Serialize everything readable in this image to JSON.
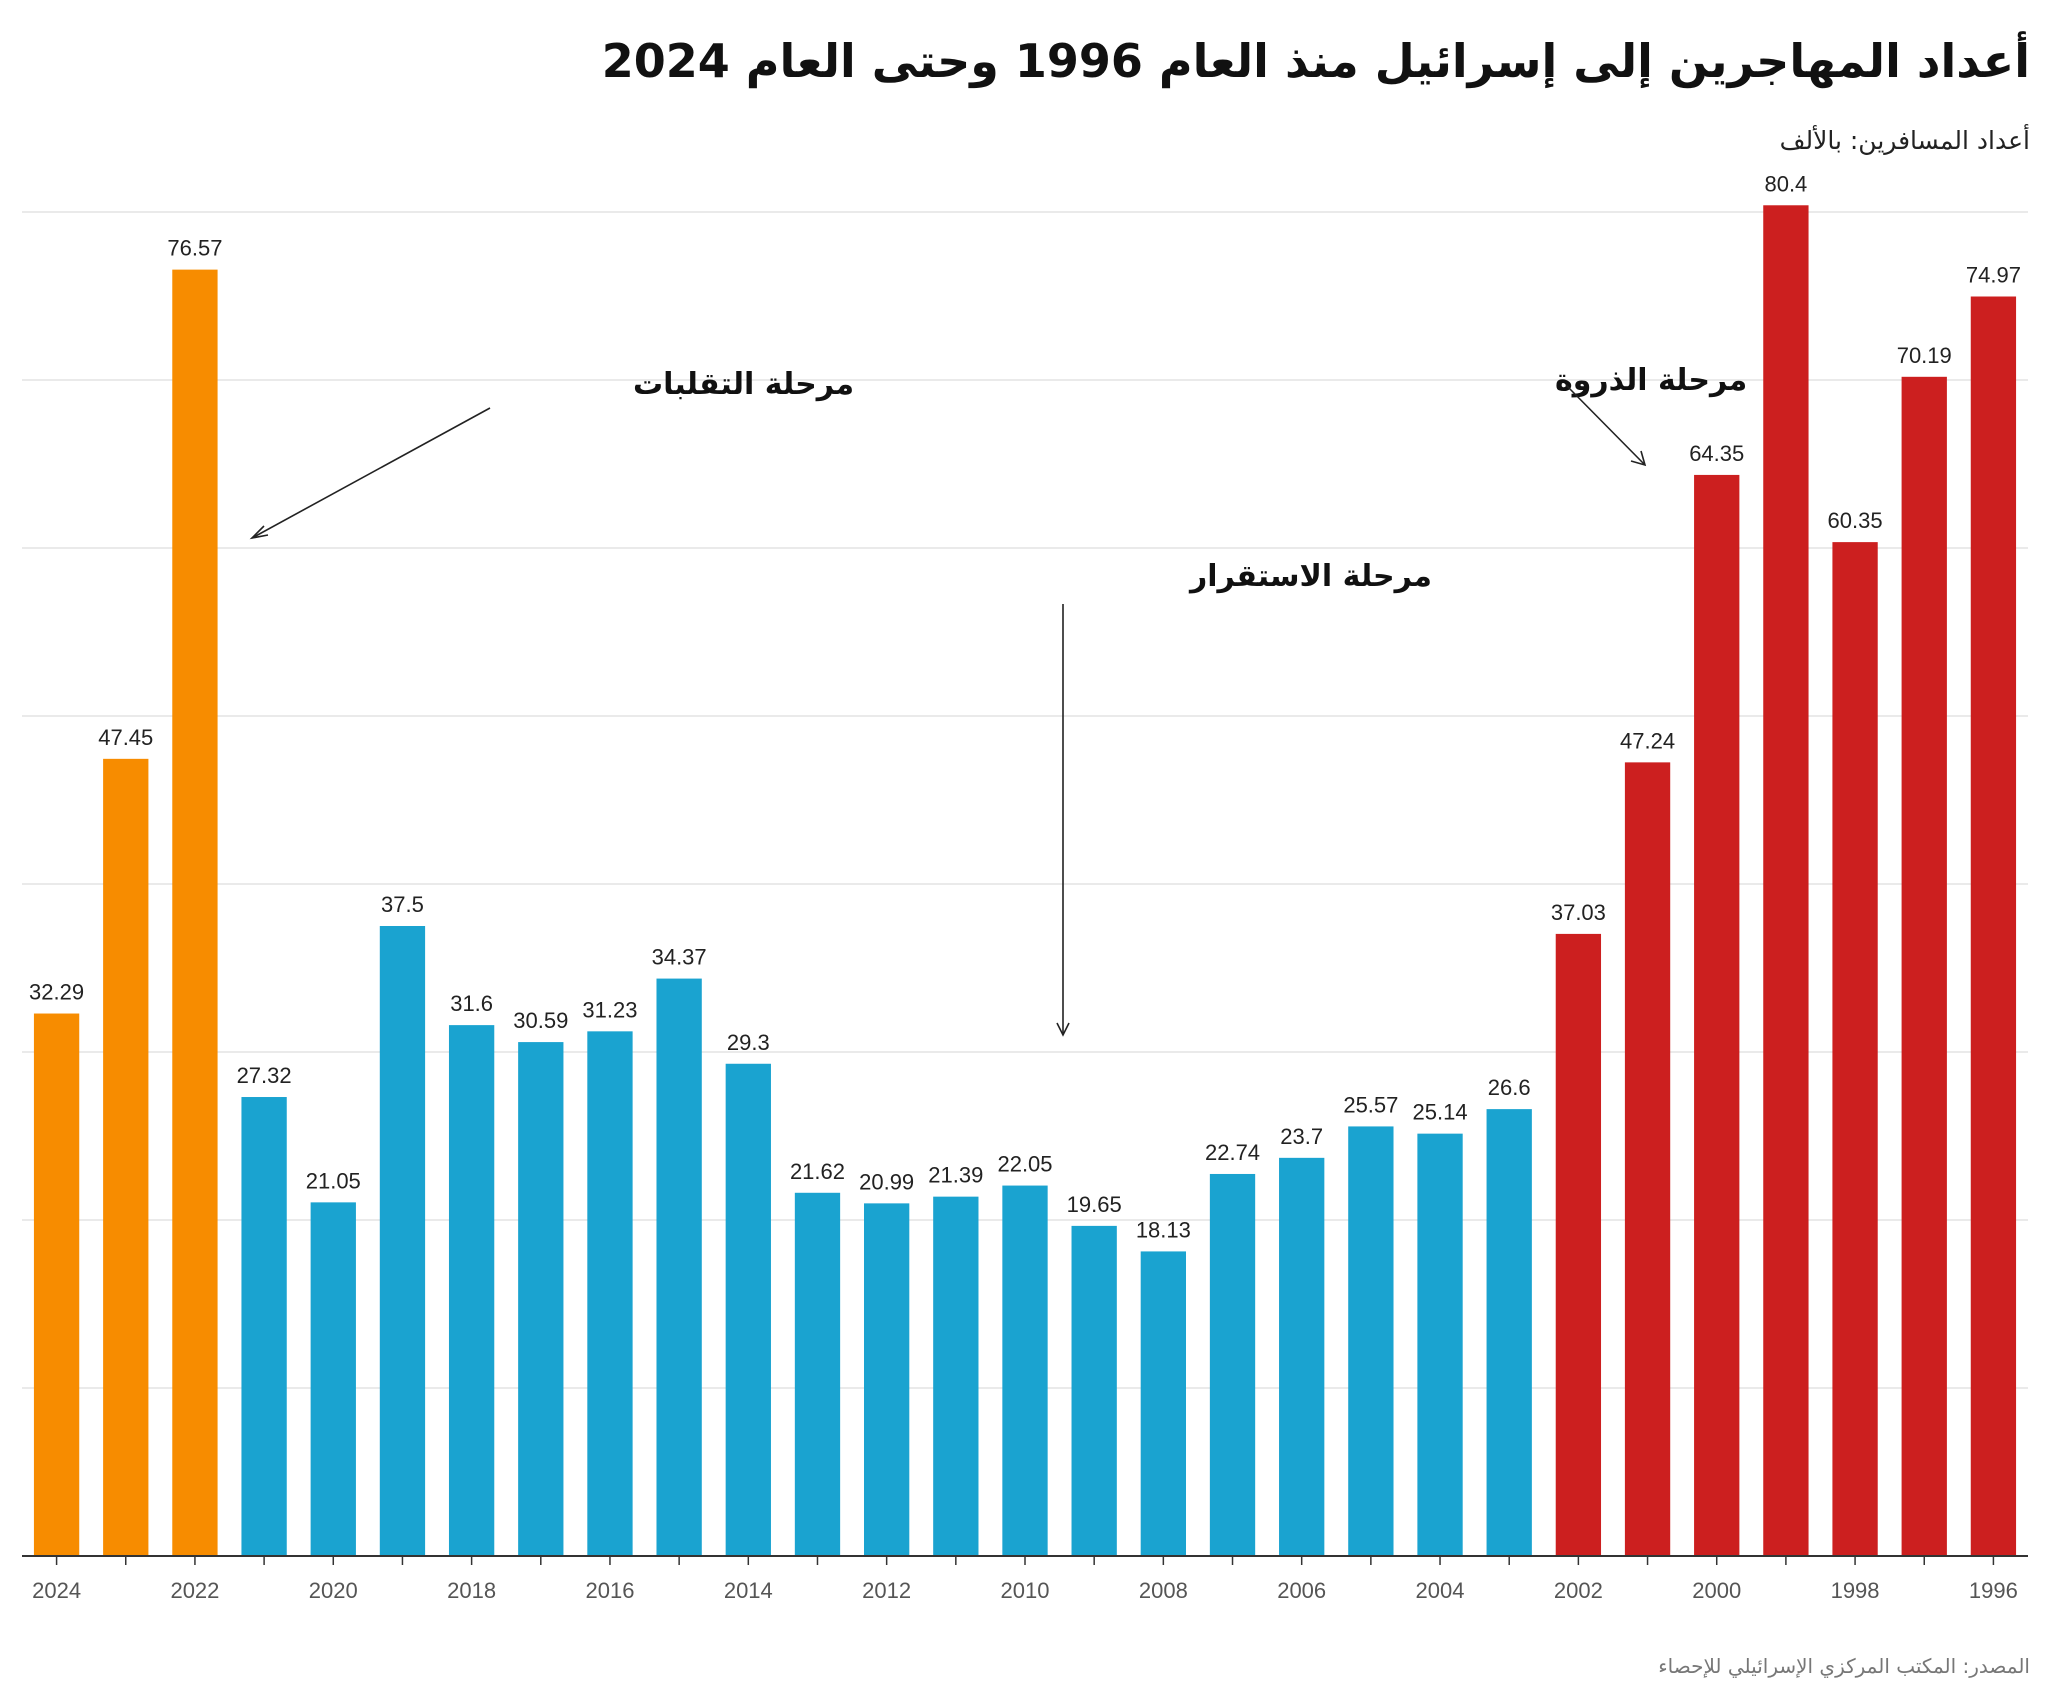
{
  "title": "أعداد المهاجرين إلى إسرائيل منذ العام 1996 وحتى العام 2024",
  "subtitle": "أعداد المسافرين: بالألف",
  "source": "المصدر: المكتب المركزي الإسرائيلي للإحصاء",
  "colors": {
    "turbulence": "#f78c00",
    "stability": "#1aa3d0",
    "peak": "#cc1f1f",
    "grid": "#e3e3e3",
    "axis": "#333333"
  },
  "annotations": {
    "turbulence": "مرحلة التقلبات",
    "stability": "مرحلة الاستقرار",
    "peak": "مرحلة الذروة"
  },
  "chart_data": {
    "type": "bar",
    "title": "أعداد المهاجرين إلى إسرائيل منذ العام 1996 وحتى العام 2024",
    "ylabel": "أعداد المسافرين: بالألف",
    "xlabel": "",
    "ylim": [
      0,
      80
    ],
    "grid": true,
    "categories": [
      2024,
      2023,
      2022,
      2021,
      2020,
      2019,
      2018,
      2017,
      2016,
      2015,
      2014,
      2013,
      2012,
      2011,
      2010,
      2009,
      2008,
      2007,
      2006,
      2005,
      2004,
      2003,
      2002,
      2001,
      2000,
      1999,
      1998,
      1997,
      1996
    ],
    "values": [
      32.29,
      47.45,
      76.57,
      27.32,
      21.05,
      37.5,
      31.6,
      30.59,
      31.23,
      34.37,
      29.3,
      21.62,
      20.99,
      21.39,
      22.05,
      19.65,
      18.13,
      22.74,
      23.7,
      25.57,
      25.14,
      26.6,
      37.03,
      47.24,
      64.35,
      80.4,
      60.35,
      70.19,
      74.97
    ],
    "value_labels": [
      "32.29",
      "47.45",
      "76.57",
      "27.32",
      "21.05",
      "37.5",
      "31.6",
      "30.59",
      "31.23",
      "34.37",
      "29.3",
      "21.62",
      "20.99",
      "21.39",
      "22.05",
      "19.65",
      "18.13",
      "22.74",
      "23.7",
      "25.57",
      "25.14",
      "26.6",
      "37.03",
      "47.24",
      "64.35",
      "80.4",
      "60.35",
      "70.19",
      "74.97"
    ],
    "phases": [
      "turbulence",
      "turbulence",
      "turbulence",
      "stability",
      "stability",
      "stability",
      "stability",
      "stability",
      "stability",
      "stability",
      "stability",
      "stability",
      "stability",
      "stability",
      "stability",
      "stability",
      "stability",
      "stability",
      "stability",
      "stability",
      "stability",
      "stability",
      "peak",
      "peak",
      "peak",
      "peak",
      "peak",
      "peak",
      "peak"
    ],
    "tick_labels": [
      "2024",
      "2022",
      "2020",
      "2018",
      "2016",
      "2014",
      "2012",
      "2010",
      "2008",
      "2006",
      "2004",
      "2002",
      "2000",
      "1998",
      "1996"
    ]
  }
}
